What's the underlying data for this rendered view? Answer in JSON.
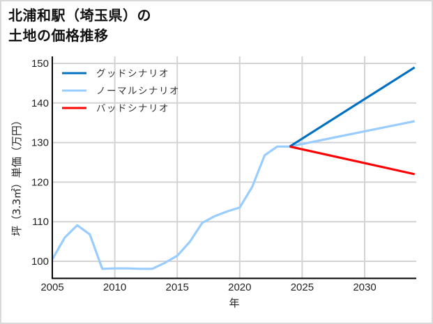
{
  "title": {
    "line1": "北浦和駅（埼玉県）の",
    "line2": "土地の価格推移"
  },
  "chart_data": {
    "type": "line",
    "title": "北浦和駅（埼玉県）の土地の価格推移",
    "xlabel": "年",
    "ylabel": "坪（3.3㎡）単価（万円）",
    "xlim": [
      2005,
      2034
    ],
    "ylim": [
      95.5,
      151.5
    ],
    "xticks": [
      2005,
      2010,
      2015,
      2020,
      2025,
      2030
    ],
    "yticks": [
      100,
      110,
      120,
      130,
      140,
      150
    ],
    "grid": true,
    "legend_position": "upper left",
    "series": [
      {
        "name": "ノーマルシナリオ",
        "color": "#99ccff",
        "x": [
          2005,
          2006,
          2007,
          2008,
          2009,
          2010,
          2011,
          2012,
          2013,
          2014,
          2015,
          2016,
          2017,
          2018,
          2019,
          2020,
          2021,
          2022,
          2023,
          2024,
          2034
        ],
        "values": [
          100.5,
          106.0,
          109.1,
          106.8,
          98.1,
          98.2,
          98.2,
          98.1,
          98.1,
          99.6,
          101.4,
          104.9,
          109.7,
          111.4,
          112.6,
          113.6,
          118.8,
          126.8,
          129.0,
          129.0,
          135.4
        ]
      },
      {
        "name": "グッドシナリオ",
        "color": "#0070c0",
        "x": [
          2024,
          2034
        ],
        "values": [
          129.0,
          149.0
        ]
      },
      {
        "name": "バッドシナリオ",
        "color": "#ff0000",
        "x": [
          2024,
          2034
        ],
        "values": [
          129.0,
          122.0
        ]
      }
    ]
  },
  "legend": [
    {
      "label": "グッドシナリオ",
      "color": "#0070c0"
    },
    {
      "label": "ノーマルシナリオ",
      "color": "#99ccff"
    },
    {
      "label": "バッドシナリオ",
      "color": "#ff0000"
    }
  ],
  "axes": {
    "x_label": "年",
    "y_label": "坪（3.3㎡）単価（万円）",
    "x_ticks": [
      "2005",
      "2010",
      "2015",
      "2020",
      "2025",
      "2030"
    ],
    "y_ticks": [
      "100",
      "110",
      "120",
      "130",
      "140",
      "150"
    ]
  }
}
